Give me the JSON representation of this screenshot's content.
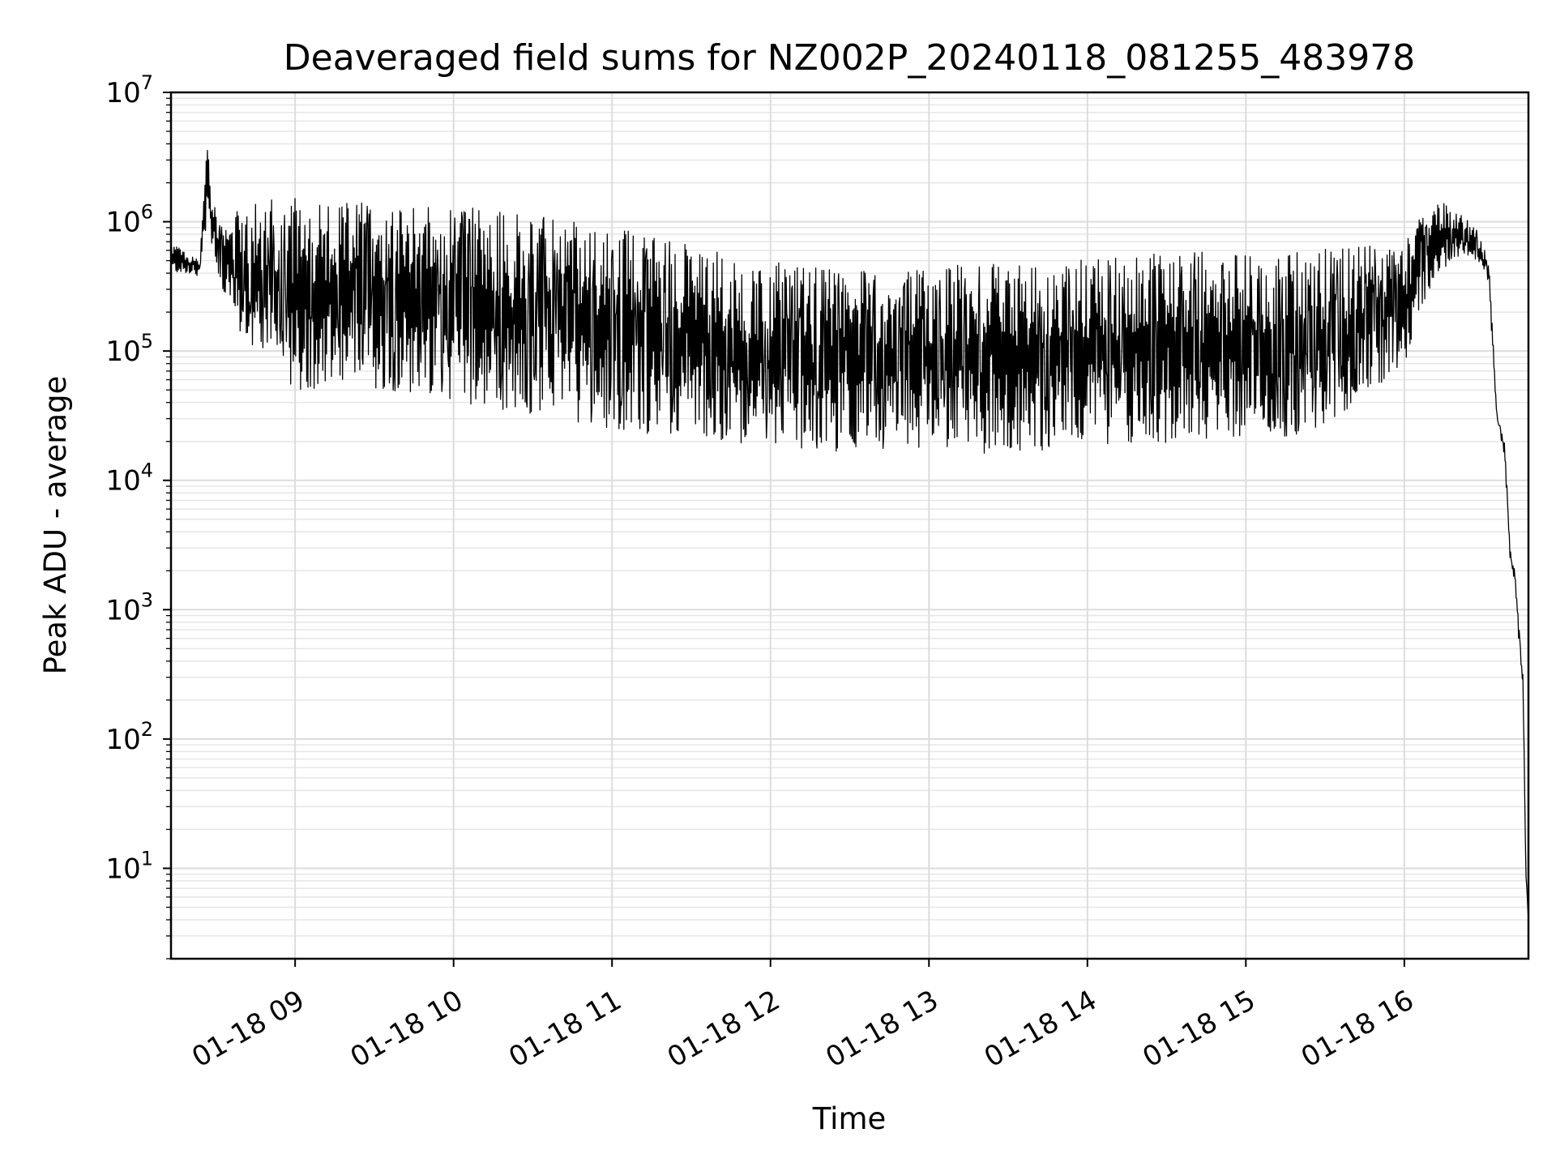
{
  "chart_data": {
    "type": "line",
    "title": "Deaveraged field sums for NZ002P_20240118_081255_483978",
    "xlabel": "Time",
    "ylabel": "Peak ADU - average",
    "yscale": "log",
    "ylim": [
      2,
      10000000
    ],
    "xlim": [
      "2024-01-18 08:13",
      "2024-01-18 16:47"
    ],
    "grid": true,
    "x_tick_labels": [
      "01-18 09",
      "01-18 10",
      "01-18 11",
      "01-18 12",
      "01-18 13",
      "01-18 14",
      "01-18 15",
      "01-18 16"
    ],
    "y_tick_labels": [
      {
        "base": "10",
        "exp": "1"
      },
      {
        "base": "10",
        "exp": "2"
      },
      {
        "base": "10",
        "exp": "3"
      },
      {
        "base": "10",
        "exp": "4"
      },
      {
        "base": "10",
        "exp": "5"
      },
      {
        "base": "10",
        "exp": "6"
      },
      {
        "base": "10",
        "exp": "7"
      }
    ],
    "series": [
      {
        "color": "#000000",
        "x": [
          "2024-01-18 08:13",
          "2024-01-18 08:18",
          "2024-01-18 08:24",
          "2024-01-18 08:25",
          "2024-01-18 08:27",
          "2024-01-18 08:28",
          "2024-01-18 08:30",
          "2024-01-18 08:33",
          "2024-01-18 08:40",
          "2024-01-18 08:50",
          "2024-01-18 09:00",
          "2024-01-18 09:15",
          "2024-01-18 09:30",
          "2024-01-18 09:45",
          "2024-01-18 10:00",
          "2024-01-18 10:15",
          "2024-01-18 10:30",
          "2024-01-18 10:45",
          "2024-01-18 11:00",
          "2024-01-18 11:20",
          "2024-01-18 11:40",
          "2024-01-18 12:00",
          "2024-01-18 12:20",
          "2024-01-18 12:40",
          "2024-01-18 13:00",
          "2024-01-18 13:20",
          "2024-01-18 13:40",
          "2024-01-18 14:00",
          "2024-01-18 14:20",
          "2024-01-18 14:40",
          "2024-01-18 15:00",
          "2024-01-18 15:20",
          "2024-01-18 15:40",
          "2024-01-18 16:00",
          "2024-01-18 16:12",
          "2024-01-18 16:20",
          "2024-01-18 16:27",
          "2024-01-18 16:32",
          "2024-01-18 16:35",
          "2024-01-18 16:38",
          "2024-01-18 16:40",
          "2024-01-18 16:42",
          "2024-01-18 16:43",
          "2024-01-18 16:45",
          "2024-01-18 16:46",
          "2024-01-18 16:47"
        ],
        "y_upper": [
          700000,
          600000,
          500000,
          1500000,
          5500000,
          1800000,
          1200000,
          1000000,
          1300000,
          1500000,
          1600000,
          1500000,
          1450000,
          1350000,
          1400000,
          1300000,
          1200000,
          1000000,
          900000,
          750000,
          600000,
          500000,
          450000,
          420000,
          450000,
          480000,
          500000,
          550000,
          560000,
          580000,
          600000,
          620000,
          650000,
          800000,
          1500000,
          1300000,
          900000,
          500000,
          35000,
          20000,
          3000,
          2000,
          1000,
          300,
          10,
          4
        ],
        "y_lower": [
          400000,
          400000,
          380000,
          700000,
          1000000,
          700000,
          400000,
          250000,
          120000,
          70000,
          50000,
          50000,
          50000,
          45000,
          42000,
          35000,
          32000,
          28000,
          25000,
          22000,
          20000,
          18000,
          17000,
          16000,
          18000,
          16000,
          17000,
          18000,
          19000,
          20000,
          21000,
          22000,
          35000,
          80000,
          400000,
          500000,
          500000,
          300000,
          30000,
          15000,
          2500,
          1500,
          600,
          200,
          8,
          4
        ]
      }
    ]
  }
}
